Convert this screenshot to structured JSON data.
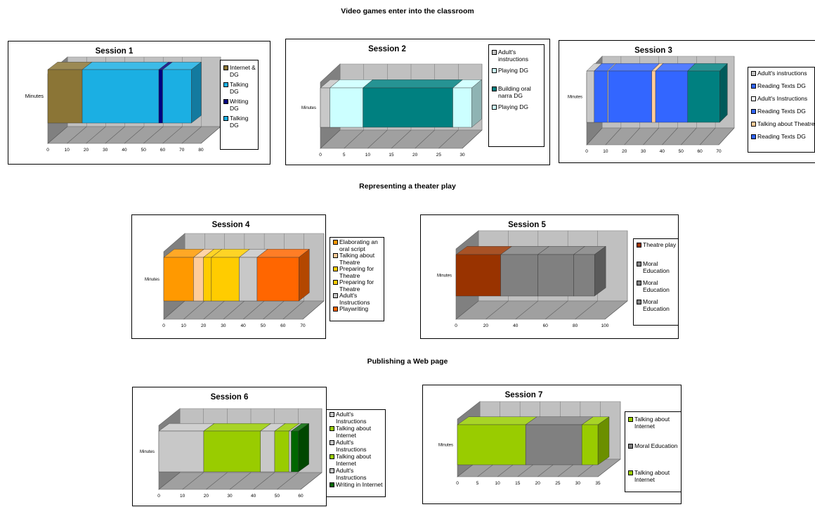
{
  "sections": [
    {
      "title": "Video games enter into the classroom"
    },
    {
      "title": "Representing a theater play"
    },
    {
      "title": "Publishing a Web page"
    }
  ],
  "chart_data": [
    {
      "type": "bar",
      "stacked": true,
      "orientation": "horizontal",
      "title": "Session 1",
      "ylabel": "Minutes",
      "categories": [
        "Minutes"
      ],
      "xlim": [
        0,
        80
      ],
      "xticks": [
        0,
        10,
        20,
        30,
        40,
        50,
        60,
        70,
        80
      ],
      "legend_position": "right",
      "series": [
        {
          "name": "Internet & DG",
          "values": [
            18
          ],
          "color": "#8B7536"
        },
        {
          "name": "Talking DG",
          "values": [
            40
          ],
          "color": "#1BAFE3"
        },
        {
          "name": "Writing DG",
          "values": [
            2
          ],
          "color": "#000080"
        },
        {
          "name": "Talking DG",
          "values": [
            15
          ],
          "color": "#1BAFE3"
        }
      ]
    },
    {
      "type": "bar",
      "stacked": true,
      "orientation": "horizontal",
      "title": "Session 2",
      "ylabel": "Minutes",
      "categories": [
        "Minutes"
      ],
      "xlim": [
        0,
        30
      ],
      "xticks": [
        0,
        5,
        10,
        15,
        20,
        25,
        30
      ],
      "legend_position": "right",
      "series": [
        {
          "name": "Adult's instructions",
          "values": [
            2
          ],
          "color": "#C8C8C8"
        },
        {
          "name": "Playing DG",
          "values": [
            7
          ],
          "color": "#CCFFFF"
        },
        {
          "name": "Building oral narra DG",
          "values": [
            19
          ],
          "color": "#008080"
        },
        {
          "name": "Playing DG",
          "values": [
            4
          ],
          "color": "#CCFFFF"
        }
      ]
    },
    {
      "type": "bar",
      "stacked": true,
      "orientation": "horizontal",
      "title": "Session 3",
      "ylabel": "Minutes",
      "categories": [
        "Minutes"
      ],
      "xlim": [
        0,
        70
      ],
      "xticks": [
        0,
        10,
        20,
        30,
        40,
        50,
        60,
        70
      ],
      "legend_position": "right",
      "series": [
        {
          "name": "Adult's instructions",
          "values": [
            4
          ],
          "color": "#C8C8C8"
        },
        {
          "name": "Reading Texts DG",
          "values": [
            7
          ],
          "color": "#3366FF"
        },
        {
          "name": "Adult's Instructions",
          "values": [
            0.5
          ],
          "color": "#FFFFFF"
        },
        {
          "name": "Reading Texts DG",
          "values": [
            23
          ],
          "color": "#3366FF"
        },
        {
          "name": "Talking about Theatre",
          "values": [
            2
          ],
          "color": "#FFCC99"
        },
        {
          "name": "Reading Texts DG",
          "values": [
            17
          ],
          "color": "#3366FF"
        },
        {
          "name": "",
          "values": [
            17
          ],
          "color": "#008080"
        }
      ]
    },
    {
      "type": "bar",
      "stacked": true,
      "orientation": "horizontal",
      "title": "Session 4",
      "ylabel": "Minutes",
      "categories": [
        "Minutes"
      ],
      "xlim": [
        0,
        70
      ],
      "xticks": [
        0,
        10,
        20,
        30,
        40,
        50,
        60,
        70
      ],
      "legend_position": "right",
      "series": [
        {
          "name": "Elaborating an oral script",
          "values": [
            15
          ],
          "color": "#FF9900"
        },
        {
          "name": "Talking about Theatre",
          "values": [
            5
          ],
          "color": "#FFCC99"
        },
        {
          "name": "Preparing for Theatre",
          "values": [
            4
          ],
          "color": "#FFCC00"
        },
        {
          "name": "Preparing for Theatre",
          "values": [
            14
          ],
          "color": "#FFCC00"
        },
        {
          "name": "Adult's Instructions",
          "values": [
            9
          ],
          "color": "#C8C8C8"
        },
        {
          "name": "Playwriting",
          "values": [
            21
          ],
          "color": "#FF6600"
        }
      ]
    },
    {
      "type": "bar",
      "stacked": true,
      "orientation": "horizontal",
      "title": "Session 5",
      "ylabel": "Minutes",
      "categories": [
        "Minutes"
      ],
      "xlim": [
        0,
        100
      ],
      "xticks": [
        0,
        20,
        40,
        60,
        80,
        100
      ],
      "legend_position": "right",
      "series": [
        {
          "name": "Theatre play",
          "values": [
            30
          ],
          "color": "#993300"
        },
        {
          "name": "Moral Education",
          "values": [
            25
          ],
          "color": "#808080"
        },
        {
          "name": "Moral Education",
          "values": [
            24
          ],
          "color": "#808080"
        },
        {
          "name": "Moral Education",
          "values": [
            14
          ],
          "color": "#808080"
        }
      ]
    },
    {
      "type": "bar",
      "stacked": true,
      "orientation": "horizontal",
      "title": "Session 6",
      "ylabel": "Minutes",
      "categories": [
        "Minutes"
      ],
      "xlim": [
        0,
        60
      ],
      "xticks": [
        0,
        10,
        20,
        30,
        40,
        50,
        60
      ],
      "legend_position": "right",
      "series": [
        {
          "name": "Adult's Instructions",
          "values": [
            19
          ],
          "color": "#C8C8C8"
        },
        {
          "name": "Talking about Internet",
          "values": [
            24
          ],
          "color": "#99CC00"
        },
        {
          "name": "Adult's Instructions",
          "values": [
            6
          ],
          "color": "#C8C8C8"
        },
        {
          "name": "Talking about Internet",
          "values": [
            6
          ],
          "color": "#99CC00"
        },
        {
          "name": "Adult's Instructions",
          "values": [
            1
          ],
          "color": "#C8C8C8"
        },
        {
          "name": "Writing in Internet",
          "values": [
            3
          ],
          "color": "#006600"
        }
      ]
    },
    {
      "type": "bar",
      "stacked": true,
      "orientation": "horizontal",
      "title": "Session 7",
      "ylabel": "Minutes",
      "categories": [
        "Minutes"
      ],
      "xlim": [
        0,
        35
      ],
      "xticks": [
        0,
        5,
        10,
        15,
        20,
        25,
        30,
        35
      ],
      "legend_position": "right",
      "series": [
        {
          "name": "Talking about Internet",
          "values": [
            17
          ],
          "color": "#99CC00"
        },
        {
          "name": "Moral Education",
          "values": [
            14
          ],
          "color": "#808080"
        },
        {
          "name": "Talking about Internet",
          "values": [
            4
          ],
          "color": "#99CC00"
        }
      ]
    }
  ]
}
